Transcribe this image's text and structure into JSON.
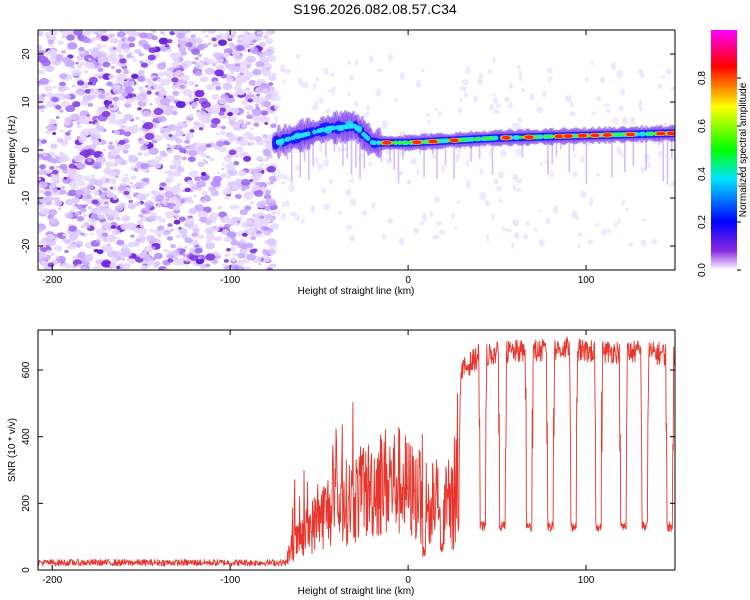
{
  "title": "S196.2026.082.08.57.C34",
  "chart_data": [
    {
      "type": "heatmap",
      "xlabel": "Height of straight line (km)",
      "ylabel": "Frequency (Hz)",
      "xlim": [
        -208,
        150
      ],
      "ylim": [
        -25,
        25
      ],
      "xticks": [
        -200,
        -100,
        0,
        100
      ],
      "yticks": [
        -20,
        -10,
        0,
        10,
        20
      ],
      "noise_region_x": [
        -208,
        -75
      ],
      "onset_x": -75,
      "ridge": {
        "description_points": [
          {
            "x": -75,
            "freq": 1.5
          },
          {
            "x": -60,
            "freq": 3.0
          },
          {
            "x": -45,
            "freq": 4.5
          },
          {
            "x": -30,
            "freq": 5.0
          },
          {
            "x": -20,
            "freq": 1.5
          },
          {
            "x": 0,
            "freq": 1.5
          },
          {
            "x": 50,
            "freq": 2.5
          },
          {
            "x": 100,
            "freq": 3.0
          },
          {
            "x": 150,
            "freq": 3.5
          }
        ]
      },
      "colorbar": {
        "label": "Normalized spectral amplitude",
        "range": [
          0.0,
          1.0
        ],
        "ticks": [
          "0.0",
          "0.2",
          "0.4",
          "0.6",
          "0.8"
        ],
        "colors": [
          "#ffffff",
          "#7b00ff",
          "#0000ff",
          "#00e5ff",
          "#00ff00",
          "#ffff00",
          "#ff0000",
          "#ff00ff"
        ]
      }
    },
    {
      "type": "line",
      "xlabel": "Height of straight line (km)",
      "ylabel": "SNR (10 * v/v)",
      "xlim": [
        -208,
        150
      ],
      "ylim": [
        0,
        720
      ],
      "xticks": [
        -200,
        -100,
        0,
        100
      ],
      "yticks": [
        0,
        200,
        400,
        600
      ],
      "series": [
        {
          "name": "SNR",
          "color": "#e8342b",
          "x": [
            -208,
            -100,
            -70,
            -65,
            -55,
            -45,
            -35,
            -25,
            -15,
            -5,
            5,
            15,
            20,
            25,
            30,
            40,
            50,
            60,
            70,
            80,
            90,
            100,
            110,
            120,
            130,
            140,
            150
          ],
          "values": [
            20,
            20,
            25,
            100,
            180,
            260,
            290,
            330,
            380,
            380,
            320,
            300,
            280,
            300,
            600,
            650,
            655,
            660,
            660,
            665,
            670,
            660,
            660,
            660,
            660,
            655,
            650
          ],
          "dropout_centers": [
            11,
            27,
            42,
            53,
            68,
            80,
            93,
            107,
            121,
            133,
            147
          ],
          "dropout_level": 130
        }
      ]
    }
  ]
}
